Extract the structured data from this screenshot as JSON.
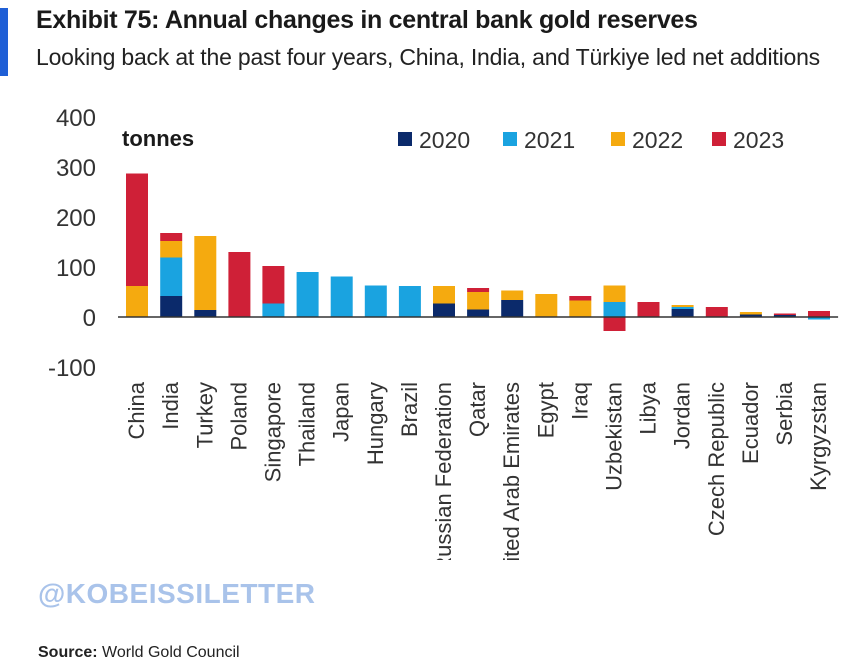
{
  "header": {
    "title": "Exhibit 75: Annual changes in central bank gold reserves",
    "subtitle": "Looking back at the past four years, China, India, and Türkiye led net additions"
  },
  "watermark": "@KOBEISSILETTER",
  "source": {
    "label": "Source:",
    "text": "World Gold Council"
  },
  "colors": {
    "accent": "#1f5fd6",
    "2020": "#0b2a6b",
    "2021": "#1aa3e0",
    "2022": "#f5aa0f",
    "2023": "#cf2037",
    "axis": "#333333"
  },
  "chart_data": {
    "type": "bar",
    "stacked": true,
    "unit_label": "tonnes",
    "ylim": [
      -100,
      400
    ],
    "yticks": [
      400,
      300,
      200,
      100,
      0,
      -100
    ],
    "grid": false,
    "legend_position": "top-right",
    "categories": [
      "China",
      "India",
      "Turkey",
      "Poland",
      "Singapore",
      "Thailand",
      "Japan",
      "Hungary",
      "Brazil",
      "Russian Federation",
      "Qatar",
      "United Arab Emirates",
      "Egypt",
      "Iraq",
      "Uzbekistan",
      "Libya",
      "Jordan",
      "Czech Republic",
      "Ecuador",
      "Serbia",
      "Kyrgyzstan"
    ],
    "series": [
      {
        "name": "2020",
        "values": [
          0,
          42,
          14,
          0,
          0,
          0,
          0,
          0,
          0,
          27,
          15,
          34,
          0,
          0,
          0,
          0,
          16,
          0,
          5,
          4,
          0
        ]
      },
      {
        "name": "2021",
        "values": [
          0,
          77,
          0,
          0,
          27,
          90,
          81,
          63,
          62,
          0,
          0,
          0,
          0,
          0,
          30,
          0,
          4,
          0,
          0,
          0,
          -5
        ]
      },
      {
        "name": "2022",
        "values": [
          62,
          33,
          148,
          0,
          0,
          0,
          0,
          0,
          0,
          35,
          35,
          19,
          46,
          33,
          33,
          0,
          4,
          0,
          5,
          0,
          0
        ]
      },
      {
        "name": "2023",
        "values": [
          225,
          16,
          0,
          130,
          75,
          0,
          0,
          0,
          0,
          0,
          8,
          0,
          0,
          9,
          -28,
          30,
          0,
          20,
          0,
          3,
          12
        ]
      }
    ]
  }
}
